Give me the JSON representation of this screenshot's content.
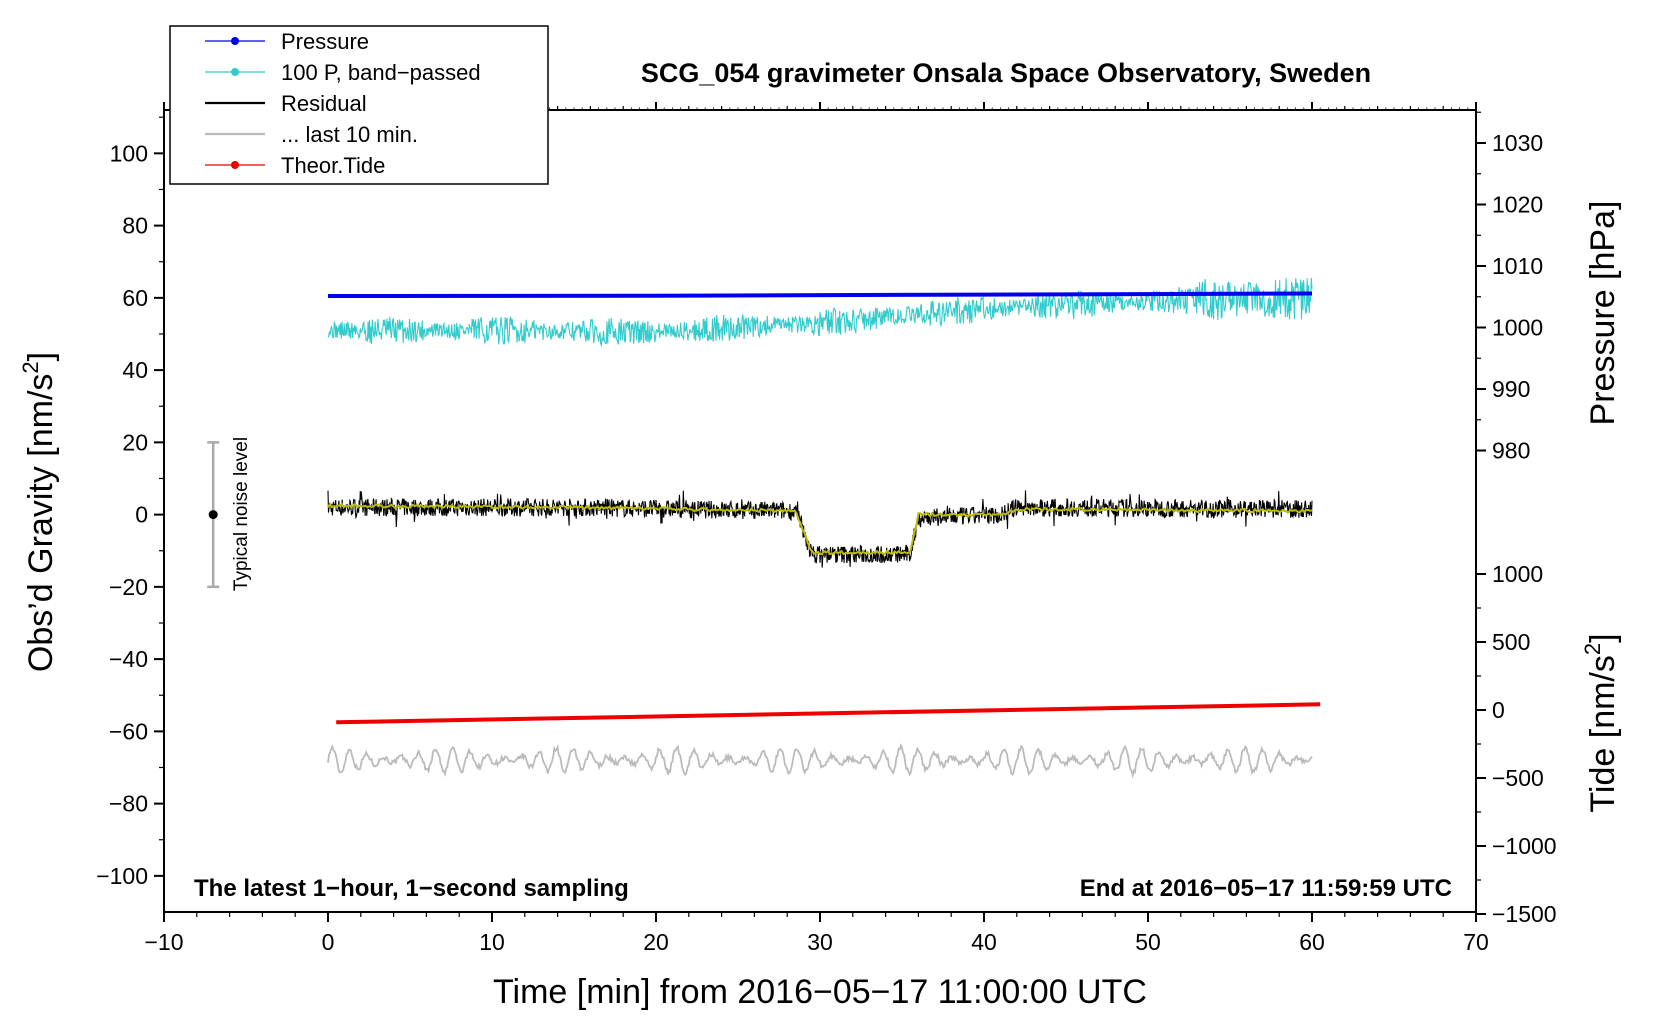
{
  "chart_data": {
    "type": "line",
    "title": "SCG_054 gravimeter Onsala Space Observatory, Sweden",
    "xlabel": "Time [min] from 2016−05−17 11:00:00 UTC",
    "ylabel_left": "Obs’d Gravity [nm/s",
    "ylabel_left_sup": "2",
    "ylabel_left_close": "]",
    "ylabel_right_pressure": "Pressure [hPa]",
    "ylabel_right_tide": "Tide [nm/s",
    "ylabel_right_tide_sup": "2",
    "ylabel_right_tide_close": "]",
    "xlim": [
      -10,
      70
    ],
    "ylim_left": [
      -110,
      112
    ],
    "x_ticks": [
      "−10",
      "0",
      "10",
      "20",
      "30",
      "40",
      "50",
      "60",
      "70"
    ],
    "y_left_ticks": [
      "100",
      "80",
      "60",
      "40",
      "20",
      "0",
      "−20",
      "−40",
      "−60",
      "−80",
      "−100"
    ],
    "y_pressure_ticks": [
      "1030",
      "1020",
      "1010",
      "1000",
      "990",
      "980"
    ],
    "y_tide_ticks": [
      "1000",
      "500",
      "0",
      "−500",
      "−1000",
      "−1500"
    ],
    "annotation_left": "The latest 1−hour, 1−second sampling",
    "annotation_right": "End at 2016−05−17 11:59:59 UTC",
    "noise_label": "Typical noise level",
    "noise_bar": {
      "x": -7,
      "center": 0,
      "half_range": 20
    },
    "legend_position": "top-left",
    "legend": [
      {
        "label": "Pressure",
        "color": "#0000ee",
        "marker": true
      },
      {
        "label": "100 P, band−passed",
        "color": "#33cccc",
        "marker": true
      },
      {
        "label": "Residual",
        "color": "#000000",
        "marker": false
      },
      {
        "label": "... last 10 min.",
        "color": "#bbbbbb",
        "marker": false
      },
      {
        "label": "Theor.Tide",
        "color": "#ee0000",
        "marker": true
      }
    ],
    "series": [
      {
        "key": "pressure",
        "color": "#0000ee",
        "points": [
          [
            0,
            60.5
          ],
          [
            20,
            60.6
          ],
          [
            40,
            60.9
          ],
          [
            60,
            61.2
          ]
        ]
      },
      {
        "key": "band_passed",
        "color": "#33cccc",
        "points": [
          [
            0,
            51
          ],
          [
            10,
            51
          ],
          [
            20,
            50.5
          ],
          [
            30,
            53
          ],
          [
            40,
            57
          ],
          [
            50,
            59
          ],
          [
            60,
            60
          ]
        ],
        "noise_amplitude": 3
      },
      {
        "key": "residual",
        "color": "#000000",
        "points": [
          [
            0,
            2
          ],
          [
            15,
            2
          ],
          [
            28.5,
            1
          ],
          [
            29.5,
            -11
          ],
          [
            35.5,
            -11
          ],
          [
            36,
            -1
          ],
          [
            41,
            0
          ],
          [
            42,
            2
          ],
          [
            60,
            1.5
          ]
        ],
        "noise_amplitude": 2.5
      },
      {
        "key": "residual_smoothed",
        "color": "#bbbb00",
        "points": [
          [
            0,
            2.5
          ],
          [
            15,
            2
          ],
          [
            28.5,
            1
          ],
          [
            29.5,
            -10.5
          ],
          [
            35.5,
            -10.5
          ],
          [
            36,
            0
          ],
          [
            41,
            0
          ],
          [
            42,
            1.5
          ],
          [
            60,
            1
          ]
        ]
      },
      {
        "key": "last_10_min",
        "color": "#bbbbbb",
        "points": [
          [
            0,
            -68
          ],
          [
            60,
            -68
          ]
        ],
        "oscillation_amplitude": 3.5,
        "oscillation_period_min": 1.05
      },
      {
        "key": "tide",
        "color": "#ee0000",
        "points": [
          [
            0.5,
            -57.5
          ],
          [
            60.5,
            -52.5
          ]
        ]
      }
    ]
  }
}
